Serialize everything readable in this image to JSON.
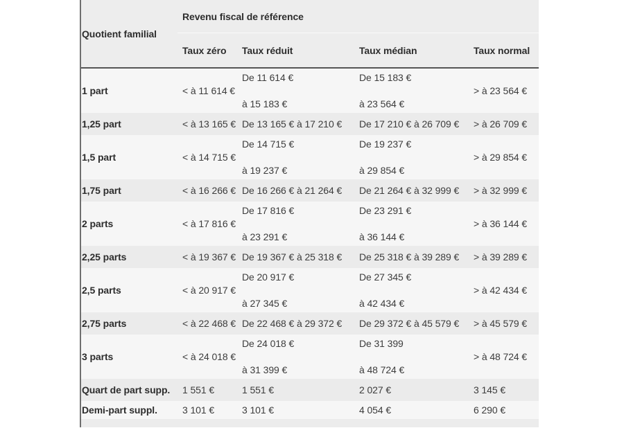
{
  "chart_data": {
    "type": "table",
    "title": "Revenu fiscal de référence",
    "corner_header": "Quotient familial",
    "columns": [
      "Taux zéro",
      "Taux réduit",
      "Taux médian",
      "Taux normal"
    ],
    "rows": [
      {
        "label": "1 part",
        "zero": "< à 11 614 €",
        "reduit": [
          "De 11 614 €",
          "à 15 183 €"
        ],
        "median": [
          "De 15 183 €",
          "à 23 564 €"
        ],
        "normal": "> à 23 564 €"
      },
      {
        "label": "1,25 part",
        "zero": "< à 13 165 €",
        "reduit": [
          "De 13 165 € à 17 210 €"
        ],
        "median": [
          "De 17 210 € à 26 709 €"
        ],
        "normal": "> à 26 709 €"
      },
      {
        "label": "1,5 part",
        "zero": "< à 14 715 €",
        "reduit": [
          "De 14 715 €",
          "à 19 237 €"
        ],
        "median": [
          "De 19 237 €",
          "à 29 854 €"
        ],
        "normal": "> à 29 854 €"
      },
      {
        "label": "1,75 part",
        "zero": "< à 16 266 €",
        "reduit": [
          "De 16 266 € à 21 264 €"
        ],
        "median": [
          "De 21 264 € à 32 999 €"
        ],
        "normal": "> à 32 999 €"
      },
      {
        "label": "2 parts",
        "zero": "< à 17 816 €",
        "reduit": [
          "De 17 816 €",
          "à 23 291 €"
        ],
        "median": [
          "De 23 291 €",
          "à 36 144 €"
        ],
        "normal": "> à 36 144 €"
      },
      {
        "label": "2,25 parts",
        "zero": "< à 19 367 €",
        "reduit": [
          "De 19 367 € à 25 318 €"
        ],
        "median": [
          "De 25 318 € à 39 289 €"
        ],
        "normal": "> à 39 289 €"
      },
      {
        "label": "2,5 parts",
        "zero": "< à 20 917 €",
        "reduit": [
          "De 20 917 €",
          "à 27 345 €"
        ],
        "median": [
          "De 27 345 €",
          "à 42 434 €"
        ],
        "normal": "> à 42 434 €"
      },
      {
        "label": "2,75 parts",
        "zero": "< à 22 468 €",
        "reduit": [
          "De 22 468 € à 29 372 €"
        ],
        "median": [
          "De 29 372 € à 45 579 €"
        ],
        "normal": "> à 45 579 €"
      },
      {
        "label": "3 parts",
        "zero": "< à 24 018 €",
        "reduit": [
          "De 24 018 €",
          "à 31 399 €"
        ],
        "median": [
          "De 31 399",
          "à 48 724 €"
        ],
        "normal": "> à 48 724 €"
      },
      {
        "label": "Quart de part supp.",
        "zero": "1 551 €",
        "reduit": [
          "1 551 €"
        ],
        "median": [
          "2 027 €"
        ],
        "normal": "3 145 €"
      },
      {
        "label": "Demi-part suppl.",
        "zero": "3 101 €",
        "reduit": [
          "3 101 €"
        ],
        "median": [
          "4 054 €"
        ],
        "normal": "6 290 €"
      }
    ]
  },
  "colors": {
    "header_bg": "#ededed",
    "row_shaded_bg": "#ebebeb",
    "row_light_bg": "#f6f6f6",
    "header_rule": "#555555",
    "left_rule": "#6f6f6f",
    "text": "#3c3c3c",
    "text_bold": "#2d2d2d"
  }
}
